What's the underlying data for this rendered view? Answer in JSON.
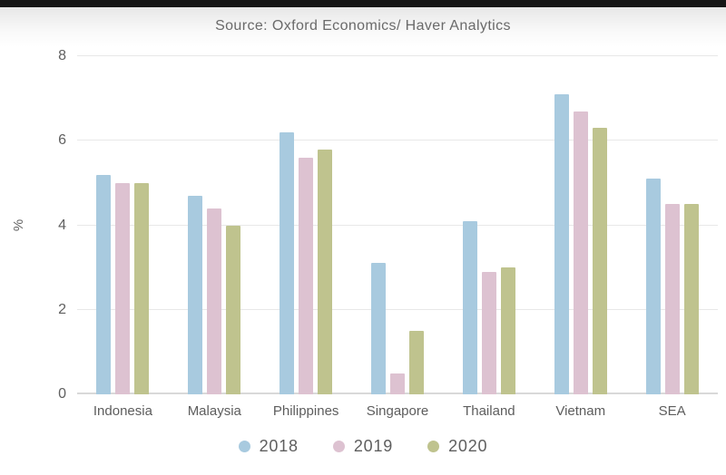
{
  "page": {
    "topbar_color": "#161616"
  },
  "chart_data": {
    "type": "bar",
    "title": "Source: Oxford Economics/ Haver Analytics",
    "xlabel": "",
    "ylabel": "%",
    "ylim": [
      0,
      8
    ],
    "yticks": [
      0,
      2,
      4,
      6,
      8
    ],
    "grid": true,
    "legend_position": "bottom",
    "categories": [
      "Indonesia",
      "Malaysia",
      "Philippines",
      "Singapore",
      "Thailand",
      "Vietnam",
      "SEA"
    ],
    "series": [
      {
        "name": "2018",
        "color": "#a8cadf",
        "values": [
          5.2,
          4.7,
          6.2,
          3.1,
          4.1,
          7.1,
          5.1
        ]
      },
      {
        "name": "2019",
        "color": "#ddc2d1",
        "values": [
          5.0,
          4.4,
          5.6,
          0.5,
          2.9,
          6.7,
          4.5
        ]
      },
      {
        "name": "2020",
        "color": "#bfc38e",
        "values": [
          5.0,
          4.0,
          5.8,
          1.5,
          3.0,
          6.3,
          4.5
        ]
      }
    ]
  }
}
